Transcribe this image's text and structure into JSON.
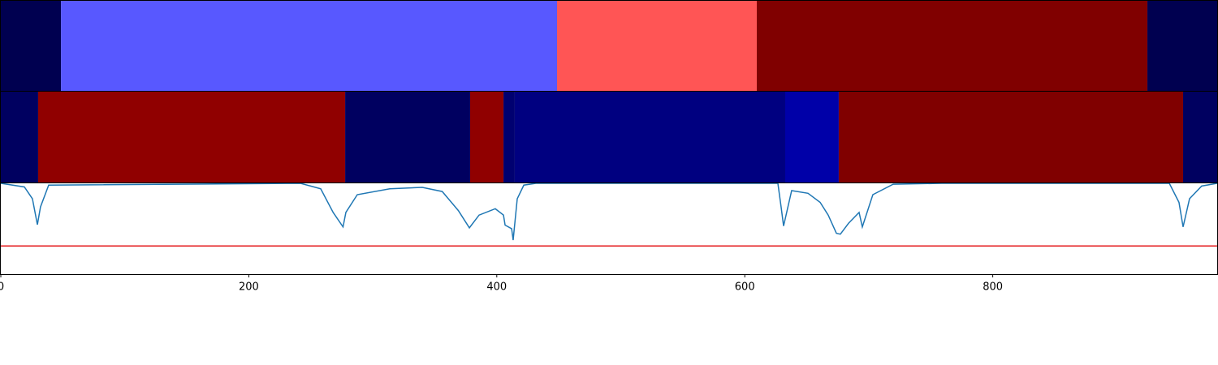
{
  "chart_data": [
    {
      "type": "segments",
      "segments": [
        {
          "start": 0,
          "end": 48.5,
          "color": "#000050"
        },
        {
          "start": 48.5,
          "end": 448.6,
          "color": "#5858ff"
        },
        {
          "start": 448.6,
          "end": 609.7,
          "color": "#ff5555"
        },
        {
          "start": 609.7,
          "end": 924.7,
          "color": "#800000"
        },
        {
          "start": 924.7,
          "end": 981,
          "color": "#000050"
        }
      ]
    },
    {
      "type": "segments",
      "segments": [
        {
          "start": 0,
          "end": 30.1,
          "color": "#000060"
        },
        {
          "start": 30.1,
          "end": 277.7,
          "color": "#900000"
        },
        {
          "start": 277.7,
          "end": 378.5,
          "color": "#000060"
        },
        {
          "start": 378.5,
          "end": 405.4,
          "color": "#900000"
        },
        {
          "start": 405.4,
          "end": 414.5,
          "color": "#000070"
        },
        {
          "start": 414.5,
          "end": 632.6,
          "color": "#000080"
        },
        {
          "start": 632.6,
          "end": 675.8,
          "color": "#0000a8"
        },
        {
          "start": 675.8,
          "end": 953.5,
          "color": "#800000"
        },
        {
          "start": 953.5,
          "end": 981,
          "color": "#000060"
        }
      ]
    },
    {
      "type": "line",
      "color": "#1f77b4",
      "hline": 0.31,
      "hline_color": "#e41a1c",
      "ylim": [
        0,
        1
      ],
      "xlim": [
        0,
        981
      ],
      "xticks": [
        0,
        200,
        400,
        600,
        800
      ],
      "x": [
        0,
        19,
        25.5,
        29.5,
        32,
        38.6,
        241.7,
        258,
        268,
        276,
        278.3,
        287.5,
        313.7,
        339.9,
        356,
        369,
        377.9,
        385.7,
        398.8,
        405.4,
        406.7,
        412,
        413.2,
        416.5,
        421.8,
        431.6,
        626.7,
        629.3,
        631.3,
        637.8,
        651,
        660.8,
        667.3,
        673.9,
        677.1,
        683.7,
        692.2,
        694.8,
        703.3,
        719.7,
        759,
        942.4,
        950.2,
        953.5,
        958.7,
        968.5,
        981
      ],
      "values": [
        1.0,
        0.96,
        0.83,
        0.545,
        0.74,
        0.98,
        1.0,
        0.94,
        0.68,
        0.52,
        0.68,
        0.875,
        0.94,
        0.955,
        0.91,
        0.7,
        0.51,
        0.65,
        0.72,
        0.65,
        0.54,
        0.5,
        0.375,
        0.83,
        0.98,
        1.0,
        1.0,
        0.74,
        0.53,
        0.92,
        0.89,
        0.79,
        0.65,
        0.45,
        0.44,
        0.56,
        0.68,
        0.52,
        0.875,
        0.99,
        1.0,
        1.0,
        0.79,
        0.52,
        0.83,
        0.97,
        1.0
      ]
    }
  ]
}
